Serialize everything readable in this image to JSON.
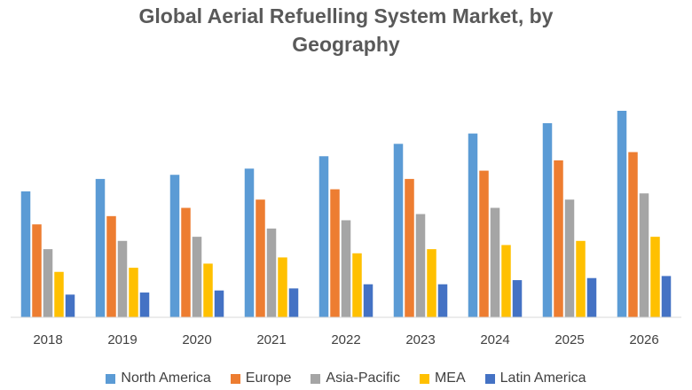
{
  "chart_data": {
    "type": "bar",
    "title_lines": [
      "Global Aerial Refuelling System Market, by",
      "Geography"
    ],
    "categories": [
      "2018",
      "2019",
      "2020",
      "2021",
      "2022",
      "2023",
      "2024",
      "2025",
      "2026"
    ],
    "ylim": [
      0,
      100
    ],
    "grid": false,
    "legend_position": "bottom",
    "series": [
      {
        "name": "North America",
        "color": "#5b9bd5",
        "values": [
          61,
          67,
          69,
          72,
          78,
          84,
          89,
          94,
          100
        ]
      },
      {
        "name": "Europe",
        "color": "#ed7d31",
        "values": [
          45,
          49,
          53,
          57,
          62,
          67,
          71,
          76,
          80
        ]
      },
      {
        "name": "Asia-Pacific",
        "color": "#a5a5a5",
        "values": [
          33,
          37,
          39,
          43,
          47,
          50,
          53,
          57,
          60
        ]
      },
      {
        "name": "MEA",
        "color": "#ffc000",
        "values": [
          22,
          24,
          26,
          29,
          31,
          33,
          35,
          37,
          39
        ]
      },
      {
        "name": "Latin America",
        "color": "#4472c4",
        "values": [
          11,
          12,
          13,
          14,
          16,
          16,
          18,
          19,
          20
        ]
      }
    ]
  }
}
